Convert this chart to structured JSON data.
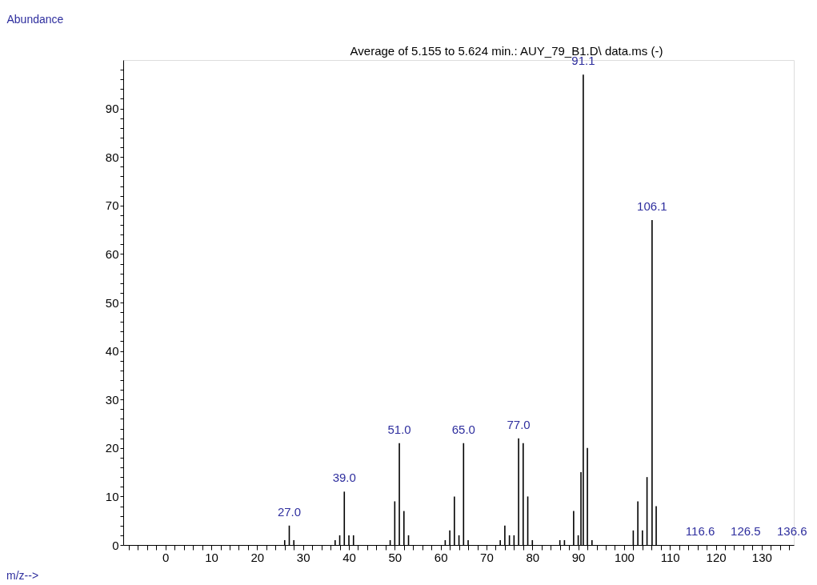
{
  "chart_data": {
    "type": "bar",
    "title": "Average of 5.155 to 5.624 min.: AUY_79_B1.D\\ data.ms (-)",
    "ylabel": "Abundance",
    "x": [
      26,
      27,
      28,
      37,
      38,
      39,
      40,
      41,
      49,
      50,
      51,
      52,
      53,
      61,
      62,
      63,
      64,
      65,
      66,
      73,
      74,
      75,
      76,
      77,
      78,
      79,
      80,
      86,
      87,
      89,
      90,
      90.6,
      91.1,
      92,
      93,
      102,
      103,
      104,
      105,
      106.1,
      107,
      116.6,
      126.5,
      136.6
    ],
    "values": [
      1,
      4,
      1,
      1,
      2,
      11,
      2,
      2,
      1,
      9,
      21,
      7,
      2,
      1,
      3,
      10,
      2,
      21,
      1,
      1,
      4,
      2,
      2,
      22,
      21,
      10,
      1,
      1,
      1,
      7,
      2,
      15,
      97,
      20,
      1,
      3,
      9,
      3,
      14,
      67,
      8,
      0,
      0,
      0
    ],
    "annotations": [
      {
        "text": "27.0",
        "x": 27,
        "y": 4
      },
      {
        "text": "39.0",
        "x": 39,
        "y": 11
      },
      {
        "text": "51.0",
        "x": 51,
        "y": 21
      },
      {
        "text": "65.0",
        "x": 65,
        "y": 21
      },
      {
        "text": "77.0",
        "x": 77,
        "y": 22
      },
      {
        "text": "91.1",
        "x": 91.1,
        "y": 97
      },
      {
        "text": "106.1",
        "x": 106.1,
        "y": 67
      },
      {
        "text": "116.6",
        "x": 116.6,
        "y": 0
      },
      {
        "text": "126.5",
        "x": 126.5,
        "y": 0
      },
      {
        "text": "136.6",
        "x": 136.6,
        "y": 0
      },
      "m/z-->"
    ],
    "color": "#000000",
    "xlim": [
      -9.2,
      137
    ],
    "ylim": [
      0,
      100
    ],
    "xticks": [
      {
        "value": -8,
        "label": null
      },
      {
        "value": -6,
        "label": null
      },
      {
        "value": -4,
        "label": null
      },
      {
        "value": -2,
        "label": null
      },
      0,
      {
        "value": 2,
        "label": null
      },
      {
        "value": 4,
        "label": null
      },
      {
        "value": 6,
        "label": null
      },
      {
        "value": 8,
        "label": null
      },
      10,
      {
        "value": 12,
        "label": null
      },
      {
        "value": 14,
        "label": null
      },
      {
        "value": 16,
        "label": null
      },
      {
        "value": 18,
        "label": null
      },
      20,
      {
        "value": 22,
        "label": null
      },
      {
        "value": 24,
        "label": null
      },
      {
        "value": 26,
        "label": null
      },
      {
        "value": 28,
        "label": null
      },
      30,
      {
        "value": 32,
        "label": null
      },
      {
        "value": 34,
        "label": null
      },
      {
        "value": 36,
        "label": null
      },
      {
        "value": 38,
        "label": null
      },
      40,
      {
        "value": 42,
        "label": null
      },
      {
        "value": 44,
        "label": null
      },
      {
        "value": 46,
        "label": null
      },
      {
        "value": 48,
        "label": null
      },
      50,
      {
        "value": 52,
        "label": null
      },
      {
        "value": 54,
        "label": null
      },
      {
        "value": 56,
        "label": null
      },
      {
        "value": 58,
        "label": null
      },
      60,
      {
        "value": 62,
        "label": null
      },
      {
        "value": 64,
        "label": null
      },
      {
        "value": 66,
        "label": null
      },
      {
        "value": 68,
        "label": null
      },
      70,
      {
        "value": 72,
        "label": null
      },
      {
        "value": 74,
        "label": null
      },
      {
        "value": 76,
        "label": null
      },
      {
        "value": 78,
        "label": null
      },
      80,
      {
        "value": 82,
        "label": null
      },
      {
        "value": 84,
        "label": null
      },
      {
        "value": 86,
        "label": null
      },
      {
        "value": 88,
        "label": null
      },
      90,
      {
        "value": 92,
        "label": null
      },
      {
        "value": 94,
        "label": null
      },
      {
        "value": 96,
        "label": null
      },
      {
        "value": 98,
        "label": null
      },
      100,
      {
        "value": 102,
        "label": null
      },
      {
        "value": 104,
        "label": null
      },
      {
        "value": 106,
        "label": null
      },
      {
        "value": 108,
        "label": null
      },
      110,
      {
        "value": 112,
        "label": null
      },
      {
        "value": 114,
        "label": null
      },
      {
        "value": 116,
        "label": null
      },
      {
        "value": 118,
        "label": null
      },
      120,
      {
        "value": 122,
        "label": null
      },
      {
        "value": 124,
        "label": null
      },
      {
        "value": 126,
        "label": null
      },
      {
        "value": 128,
        "label": null
      },
      130,
      {
        "value": 132,
        "label": null
      },
      {
        "value": 134,
        "label": null
      },
      {
        "value": 136,
        "label": null
      }
    ],
    "yticks": [
      0,
      {
        "value": 2,
        "label": null
      },
      {
        "value": 4,
        "label": null
      },
      {
        "value": 6,
        "label": null
      },
      {
        "value": 8,
        "label": null
      },
      10,
      {
        "value": 12,
        "label": null
      },
      {
        "value": 14,
        "label": null
      },
      {
        "value": 16,
        "label": null
      },
      {
        "value": 18,
        "label": null
      },
      20,
      {
        "value": 22,
        "label": null
      },
      {
        "value": 24,
        "label": null
      },
      {
        "value": 26,
        "label": null
      },
      {
        "value": 28,
        "label": null
      },
      30,
      {
        "value": 32,
        "label": null
      },
      {
        "value": 34,
        "label": null
      },
      {
        "value": 36,
        "label": null
      },
      {
        "value": 38,
        "label": null
      },
      40,
      {
        "value": 42,
        "label": null
      },
      {
        "value": 44,
        "label": null
      },
      {
        "value": 46,
        "label": null
      },
      {
        "value": 48,
        "label": null
      },
      50,
      {
        "value": 52,
        "label": null
      },
      {
        "value": 54,
        "label": null
      },
      {
        "value": 56,
        "label": null
      },
      {
        "value": 58,
        "label": null
      },
      60,
      {
        "value": 62,
        "label": null
      },
      {
        "value": 64,
        "label": null
      },
      {
        "value": 66,
        "label": null
      },
      {
        "value": 68,
        "label": null
      },
      70,
      {
        "value": 72,
        "label": null
      },
      {
        "value": 74,
        "label": null
      },
      {
        "value": 76,
        "label": null
      },
      {
        "value": 78,
        "label": null
      },
      80,
      {
        "value": 82,
        "label": null
      },
      {
        "value": 84,
        "label": null
      },
      {
        "value": 86,
        "label": null
      },
      {
        "value": 88,
        "label": null
      },
      90,
      {
        "value": 92,
        "label": null
      },
      {
        "value": 94,
        "label": null
      },
      {
        "value": 96,
        "label": null
      },
      {
        "value": 98,
        "label": null
      }
    ],
    "grid": false
  }
}
